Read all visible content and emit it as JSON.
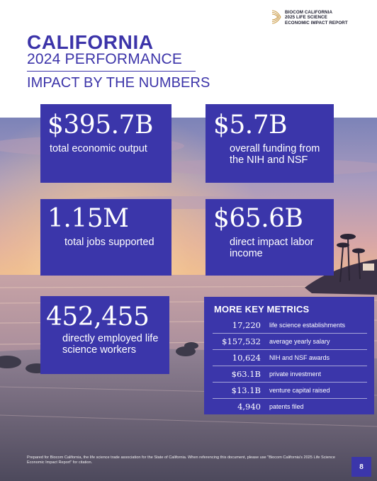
{
  "header": {
    "org_line1": "BIOCOM CALIFORNIA",
    "org_line2": "2025 LIFE SCIENCE",
    "org_line3": "ECONOMIC IMPACT REPORT"
  },
  "title": {
    "main": "CALIFORNIA",
    "sub": "2024 PERFORMANCE",
    "section": "IMPACT BY THE NUMBERS"
  },
  "stats": [
    {
      "value": "$395.7B",
      "label": "total economic output"
    },
    {
      "value": "$5.7B",
      "label": "overall funding from the NIH and NSF"
    },
    {
      "value": "1.15M",
      "label": "total jobs supported"
    },
    {
      "value": "$65.6B",
      "label": "direct impact labor income"
    },
    {
      "value": "452,455",
      "label": "directly employed life science workers"
    }
  ],
  "metrics": {
    "title": "MORE KEY METRICS",
    "items": [
      {
        "value": "17,220",
        "label": "life science establishments"
      },
      {
        "value": "$157,532",
        "label": "average yearly salary"
      },
      {
        "value": "10,624",
        "label": "NIH and NSF awards"
      },
      {
        "value": "$63.1B",
        "label": "private investment"
      },
      {
        "value": "$13.1B",
        "label": "venture capital raised"
      },
      {
        "value": "4,940",
        "label": "patents filed"
      }
    ]
  },
  "footer": {
    "note": "Prepared for Biocom California, the life science trade association for the State of California. When referencing this document, please use \"Biocom California's 2025 Life Science Economic Impact Report\" for citation.",
    "page_number": "8"
  },
  "colors": {
    "brand_purple": "#3b36aa",
    "title_purple": "#3c34a9",
    "logo_gold": "#c99a45"
  }
}
